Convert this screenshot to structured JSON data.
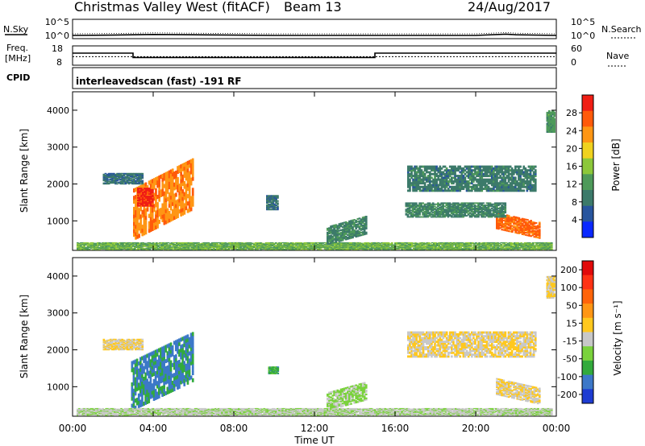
{
  "header": {
    "title": "Christmas Valley West (fitACF)",
    "beam": "Beam 13",
    "date": "24/Aug/2017"
  },
  "top_panels": {
    "nsky_label": "N.Sky",
    "nsky_ticks": [
      "10^5",
      "10^0"
    ],
    "nsearch_label": "N.Search",
    "freq_label_1": "Freq.",
    "freq_label_2": "[MHz]",
    "freq_ticks": [
      "18",
      "8"
    ],
    "nave_label": "Nave",
    "nave_ticks": [
      "60",
      "0"
    ],
    "cpid_label": "CPID",
    "cpid_text": "interleavedscan (fast) -191 RF"
  },
  "colors": {
    "power_scale": [
      "#0a28ff",
      "#28559e",
      "#3c7a6a",
      "#4e9a5a",
      "#8cc83a",
      "#f0d21e",
      "#ff9614",
      "#ff5a0a",
      "#f01e14"
    ],
    "velocity_scale": [
      "#1e3cd2",
      "#3c78c8",
      "#32aa3c",
      "#7ad23c",
      "#c8c8c8",
      "#ffc81e",
      "#ff9614",
      "#ff640a",
      "#ff3214",
      "#e10a0a"
    ]
  },
  "chart_data": [
    {
      "type": "line",
      "panel": "sky noise / search noise",
      "x": [
        "00:00",
        "02:00",
        "04:00",
        "06:00",
        "08:00",
        "10:00",
        "12:00",
        "14:00",
        "16:00",
        "18:00",
        "20:00",
        "21:30",
        "22:00",
        "24:00"
      ],
      "y_log10": [
        0.5,
        0.6,
        0.8,
        0.7,
        0.6,
        0.5,
        0.5,
        0.5,
        0.5,
        0.5,
        0.5,
        0.9,
        0.7,
        0.5
      ],
      "ylim": [
        "10^0",
        "10^5"
      ]
    },
    {
      "type": "line",
      "panel": "frequency / nave",
      "series": [
        {
          "name": "Freq.",
          "x": [
            "00:00",
            "03:00",
            "03:00",
            "15:00",
            "15:00",
            "24:00"
          ],
          "values": [
            14.5,
            14.5,
            11.8,
            11.8,
            14.5,
            14.5
          ],
          "ylim": [
            8,
            18
          ]
        },
        {
          "name": "Nave",
          "x": [
            "00:00",
            "24:00"
          ],
          "values": [
            26,
            26
          ],
          "ylim": [
            0,
            60
          ]
        }
      ]
    },
    {
      "type": "heatmap",
      "title": "Power",
      "ylabel": "Slant Range [km]",
      "colorbar_label": "Power [dB]",
      "colorbar_ticks": [
        "28",
        "24",
        "20",
        "16",
        "12",
        "8",
        "4"
      ],
      "colorbar_range": [
        0,
        32
      ],
      "y_ticks": [
        "4000",
        "3000",
        "2000",
        "1000"
      ],
      "ylim": [
        200,
        4500
      ],
      "xlim_hours": [
        0,
        24
      ],
      "regions": [
        {
          "t0": 3.0,
          "t1": 6.0,
          "r_top": 2300,
          "r_bot": 900,
          "slope": 1,
          "value": 24
        },
        {
          "t0": 3.2,
          "t1": 4.0,
          "r_top": 1900,
          "r_bot": 1400,
          "slope": 0,
          "value": 30
        },
        {
          "t0": 21.0,
          "t1": 23.2,
          "r_top": 1100,
          "r_bot": 650,
          "slope": -1,
          "value": 26
        },
        {
          "t0": 0.2,
          "t1": 23.8,
          "r_top": 420,
          "r_bot": 220,
          "slope": 0,
          "value": 14
        },
        {
          "t0": 1.5,
          "t1": 3.5,
          "r_top": 2300,
          "r_bot": 2000,
          "slope": 0,
          "value": 8
        },
        {
          "t0": 9.6,
          "t1": 10.2,
          "r_top": 1700,
          "r_bot": 1300,
          "slope": 0,
          "value": 8
        },
        {
          "t0": 12.6,
          "t1": 14.6,
          "r_top": 1000,
          "r_bot": 500,
          "slope": 1,
          "value": 10
        },
        {
          "t0": 16.6,
          "t1": 23.0,
          "r_top": 2500,
          "r_bot": 1800,
          "slope": 0,
          "value": 9
        },
        {
          "t0": 16.5,
          "t1": 21.5,
          "r_top": 1500,
          "r_bot": 1100,
          "slope": 0,
          "value": 10
        },
        {
          "t0": 23.5,
          "t1": 23.9,
          "r_top": 4000,
          "r_bot": 3400,
          "slope": 0,
          "value": 12
        }
      ]
    },
    {
      "type": "heatmap",
      "title": "Velocity",
      "ylabel": "Slant Range [km]",
      "xlabel": "Time UT",
      "colorbar_label": "Velocity [m s⁻¹]",
      "colorbar_ticks": [
        "200",
        "100",
        "50",
        "15",
        "-15",
        "-50",
        "-100",
        "-200"
      ],
      "colorbar_range": [
        -250,
        250
      ],
      "y_ticks": [
        "4000",
        "3000",
        "2000",
        "1000"
      ],
      "x_ticks": [
        "00:00",
        "04:00",
        "08:00",
        "12:00",
        "16:00",
        "20:00",
        "00:00"
      ],
      "ylim": [
        200,
        4500
      ],
      "xlim_hours": [
        0,
        24
      ],
      "regions": [
        {
          "t0": 2.9,
          "t1": 6.0,
          "r_top": 2100,
          "r_bot": 750,
          "slope": 1,
          "value": -160
        },
        {
          "t0": 9.7,
          "t1": 10.2,
          "r_top": 1550,
          "r_bot": 1350,
          "slope": 0,
          "value": -120
        },
        {
          "t0": 0.2,
          "t1": 23.8,
          "r_top": 420,
          "r_bot": 220,
          "slope": 0,
          "value": -40
        },
        {
          "t0": 1.5,
          "t1": 3.5,
          "r_top": 2300,
          "r_bot": 2000,
          "slope": 0,
          "value": 0
        },
        {
          "t0": 16.6,
          "t1": 23.0,
          "r_top": 2500,
          "r_bot": 1800,
          "slope": 0,
          "value": 0
        },
        {
          "t0": 21.0,
          "t1": 23.2,
          "r_top": 1100,
          "r_bot": 650,
          "slope": -1,
          "value": 0
        },
        {
          "t0": 12.6,
          "t1": 14.6,
          "r_top": 1000,
          "r_bot": 500,
          "slope": 1,
          "value": -60
        },
        {
          "t0": 23.5,
          "t1": 23.9,
          "r_top": 4000,
          "r_bot": 3400,
          "slope": 0,
          "value": 0
        }
      ]
    }
  ]
}
